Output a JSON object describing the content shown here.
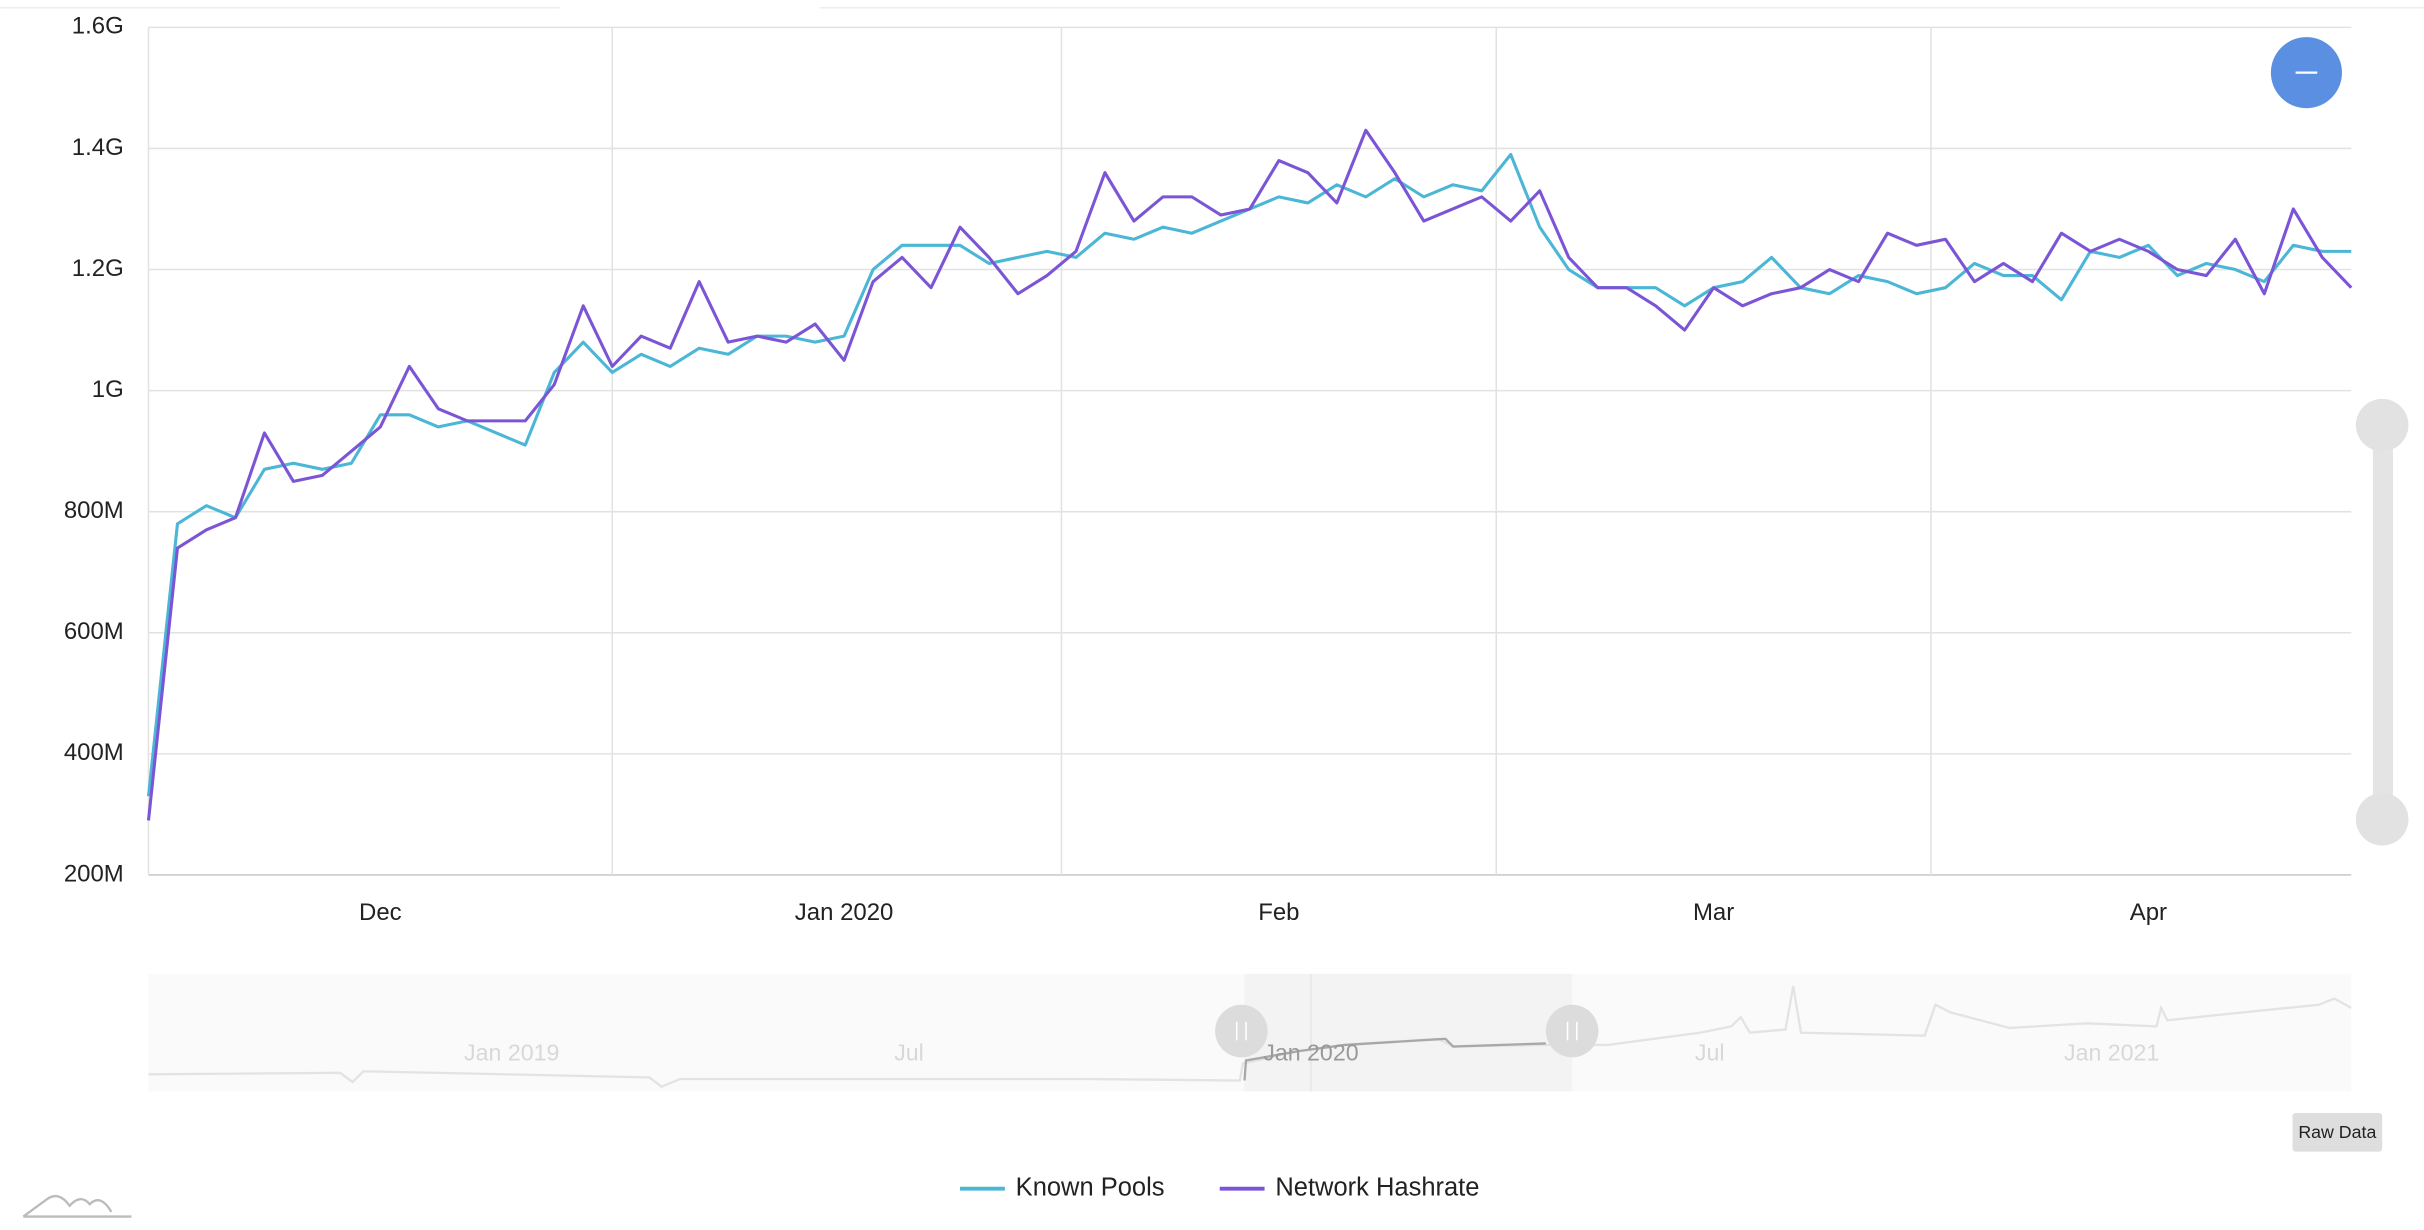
{
  "chart_data": {
    "type": "line",
    "categories": [
      null,
      null,
      null,
      null,
      null,
      null,
      null,
      null,
      "Dec",
      null,
      null,
      null,
      null,
      null,
      null,
      null,
      null,
      null,
      null,
      null,
      null,
      null,
      null,
      null,
      "Jan 2020",
      null,
      null,
      null,
      null,
      null,
      null,
      null,
      null,
      null,
      null,
      null,
      null,
      null,
      null,
      "Feb",
      null,
      null,
      null,
      null,
      null,
      null,
      null,
      null,
      null,
      null,
      null,
      null,
      null,
      null,
      "Mar",
      null,
      null,
      null,
      null,
      null,
      null,
      null,
      null,
      null,
      null,
      null,
      null,
      null,
      null,
      "Apr",
      null,
      null,
      null,
      null,
      null,
      null,
      null
    ],
    "series": [
      {
        "name": "Known Pools",
        "color": "#4bb6d6",
        "values": [
          330000000.0,
          780000000.0,
          810000000.0,
          790000000.0,
          870000000.0,
          880000000.0,
          870000000.0,
          880000000.0,
          960000000.0,
          960000000.0,
          940000000.0,
          950000000.0,
          930000000.0,
          910000000.0,
          1030000000.0,
          1080000000.0,
          1030000000.0,
          1060000000.0,
          1040000000.0,
          1070000000.0,
          1060000000.0,
          1090000000.0,
          1090000000.0,
          1080000000.0,
          1090000000.0,
          1200000000.0,
          1240000000.0,
          1240000000.0,
          1240000000.0,
          1210000000.0,
          1220000000.0,
          1230000000.0,
          1220000000.0,
          1260000000.0,
          1250000000.0,
          1270000000.0,
          1260000000.0,
          1280000000.0,
          1300000000.0,
          1320000000.0,
          1310000000.0,
          1340000000.0,
          1320000000.0,
          1350000000.0,
          1320000000.0,
          1340000000.0,
          1330000000.0,
          1390000000.0,
          1270000000.0,
          1200000000.0,
          1170000000.0,
          1170000000.0,
          1170000000.0,
          1140000000.0,
          1170000000.0,
          1180000000.0,
          1220000000.0,
          1170000000.0,
          1160000000.0,
          1190000000.0,
          1180000000.0,
          1160000000.0,
          1170000000.0,
          1210000000.0,
          1190000000.0,
          1190000000.0,
          1150000000.0,
          1230000000.0,
          1220000000.0,
          1240000000.0,
          1190000000.0,
          1210000000.0,
          1200000000.0,
          1180000000.0,
          1240000000.0,
          1230000000.0,
          1230000000.0
        ]
      },
      {
        "name": "Network Hashrate",
        "color": "#7b55d6",
        "values": [
          290000000.0,
          740000000.0,
          770000000.0,
          790000000.0,
          930000000.0,
          850000000.0,
          860000000.0,
          900000000.0,
          940000000.0,
          1040000000.0,
          970000000.0,
          950000000.0,
          950000000.0,
          950000000.0,
          1010000000.0,
          1140000000.0,
          1040000000.0,
          1090000000.0,
          1070000000.0,
          1180000000.0,
          1080000000.0,
          1090000000.0,
          1080000000.0,
          1110000000.0,
          1050000000.0,
          1180000000.0,
          1220000000.0,
          1170000000.0,
          1270000000.0,
          1220000000.0,
          1160000000.0,
          1190000000.0,
          1230000000.0,
          1360000000.0,
          1280000000.0,
          1320000000.0,
          1320000000.0,
          1290000000.0,
          1300000000.0,
          1380000000.0,
          1360000000.0,
          1310000000.0,
          1430000000.0,
          1360000000.0,
          1280000000.0,
          1300000000.0,
          1320000000.0,
          1280000000.0,
          1330000000.0,
          1220000000.0,
          1170000000.0,
          1170000000.0,
          1140000000.0,
          1100000000.0,
          1170000000.0,
          1140000000.0,
          1160000000.0,
          1170000000.0,
          1200000000.0,
          1180000000.0,
          1260000000.0,
          1240000000.0,
          1250000000.0,
          1180000000.0,
          1210000000.0,
          1180000000.0,
          1260000000.0,
          1230000000.0,
          1250000000.0,
          1230000000.0,
          1200000000.0,
          1190000000.0,
          1250000000.0,
          1160000000.0,
          1300000000.0,
          1220000000.0,
          1170000000.0
        ]
      }
    ],
    "ylim": [
      200000000,
      1600000000
    ],
    "yticks": [
      {
        "value": 200000000,
        "label": "200M"
      },
      {
        "value": 400000000,
        "label": "400M"
      },
      {
        "value": 600000000,
        "label": "600M"
      },
      {
        "value": 800000000,
        "label": "800M"
      },
      {
        "value": 1000000000,
        "label": "1G"
      },
      {
        "value": 1200000000,
        "label": "1.2G"
      },
      {
        "value": 1400000000,
        "label": "1.4G"
      },
      {
        "value": 1600000000,
        "label": "1.6G"
      }
    ],
    "grid": true
  },
  "navigator": {
    "labels": [
      "Jan 2019",
      "Jul",
      "Jan 2020",
      "Jul",
      "Jan 2021"
    ]
  },
  "raw_data_button": "Raw Data"
}
